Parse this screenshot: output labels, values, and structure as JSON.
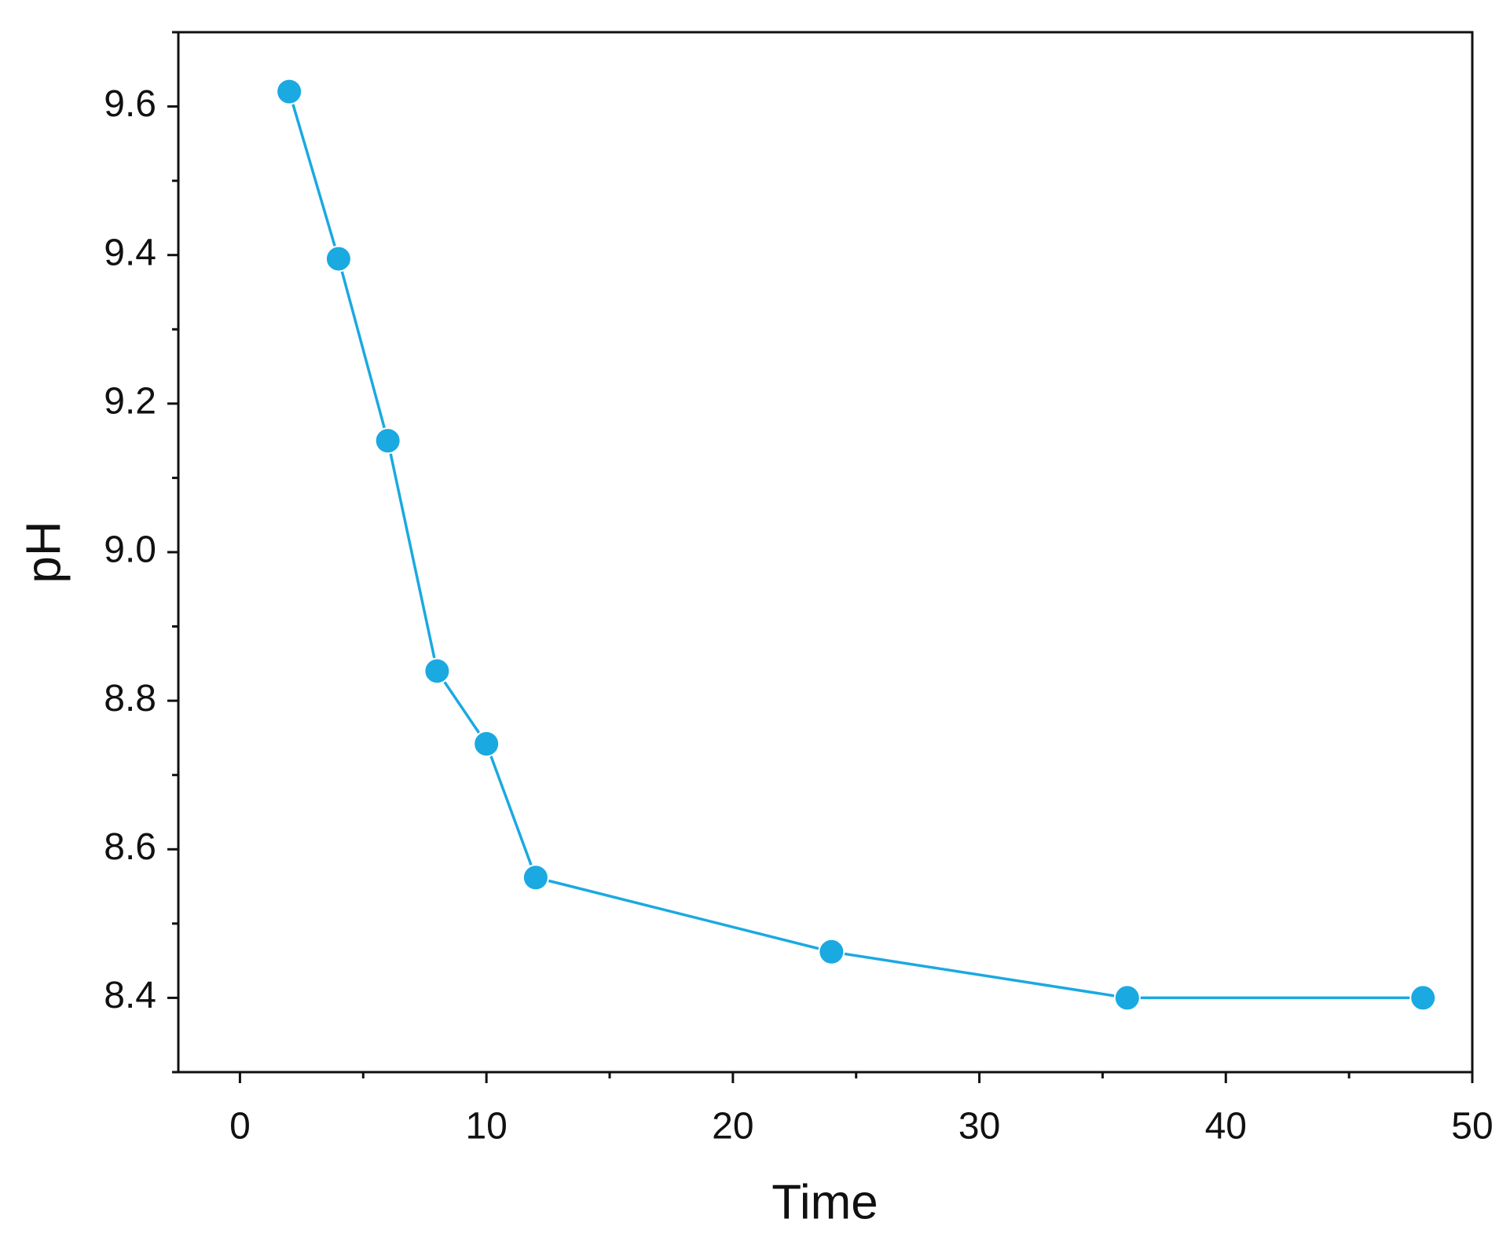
{
  "chart_data": {
    "type": "line",
    "x_label": "Time",
    "y_label": "pH",
    "x": [
      2,
      4,
      6,
      8,
      10,
      12,
      24,
      36,
      48
    ],
    "series": [
      {
        "name": "pH",
        "color": "#1aa9e1",
        "values": [
          9.62,
          9.395,
          9.15,
          8.84,
          8.742,
          8.562,
          8.462,
          8.4,
          8.4
        ]
      }
    ],
    "xlim": [
      -2.5,
      50
    ],
    "ylim": [
      8.3,
      9.7
    ],
    "xticks": [
      0,
      10,
      20,
      30,
      40,
      50
    ],
    "yticks": [
      {
        "value": 8.4,
        "label": "8.4"
      },
      {
        "value": 8.6,
        "label": "8.6"
      },
      {
        "value": 8.8,
        "label": "8.8"
      },
      {
        "value": 9.0,
        "label": "9.0"
      },
      {
        "value": 9.2,
        "label": "9.2"
      },
      {
        "value": 9.4,
        "label": "9.4"
      },
      {
        "value": 9.6,
        "label": "9.6"
      }
    ],
    "xticks_minor": [
      5,
      15,
      25,
      35,
      45
    ],
    "yticks_minor": [
      8.3,
      8.5,
      8.7,
      8.9,
      9.1,
      9.3,
      9.5,
      9.7
    ],
    "grid": false,
    "markers": true
  }
}
